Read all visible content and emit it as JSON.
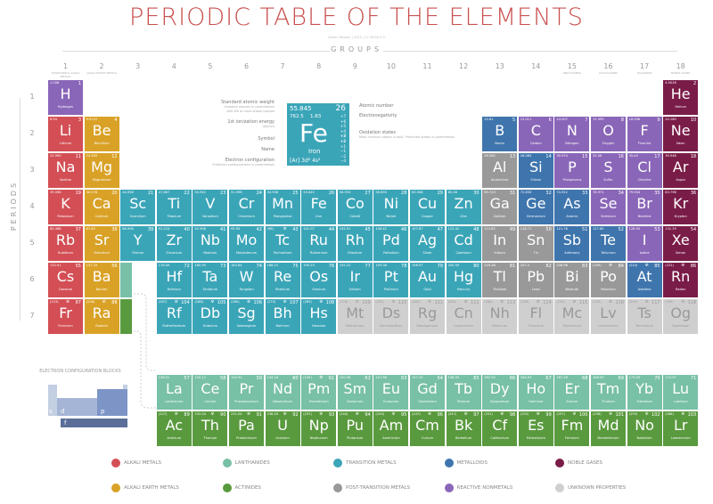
{
  "title": "PERIODIC TABLE OF THE ELEMENTS",
  "credit": "Adrian Roshan | 2021 | CC BY-SA 4.0",
  "groups_title": "GROUPS",
  "periods_title": "PERIODS",
  "group_numbers": [
    "1",
    "2",
    "3",
    "4",
    "5",
    "6",
    "7",
    "8",
    "9",
    "10",
    "11",
    "12",
    "13",
    "14",
    "15",
    "16",
    "17",
    "18"
  ],
  "group_names": {
    "1": "HYDROGEN & ALKALI METALS",
    "2": "ALKALI EARTH METALS",
    "15": "PNICTOGENS",
    "16": "CHALCOGENS",
    "17": "HALOGENS",
    "18": "NOBLE GASES"
  },
  "period_numbers": [
    "1",
    "2",
    "3",
    "4",
    "5",
    "6",
    "7"
  ],
  "colors": {
    "a": "#d34f55",
    "ae": "#d9a227",
    "tm": "#3ba5b8",
    "ln": "#78c0a6",
    "an": "#5a9a3f",
    "pt": "#999999",
    "md": "#3f75ad",
    "nm": "#8a66b8",
    "ng": "#7a1c48",
    "uk": "#cfcfcf"
  },
  "legend": [
    {
      "cat": "a",
      "label": "ALKALI METALS"
    },
    {
      "cat": "ln",
      "label": "LANTHANIDES"
    },
    {
      "cat": "tm",
      "label": "TRANSITION METALS"
    },
    {
      "cat": "md",
      "label": "METALLOIDS"
    },
    {
      "cat": "ng",
      "label": "NOBLE GASES"
    },
    {
      "cat": "ae",
      "label": "ALKALI EARTH METALS"
    },
    {
      "cat": "an",
      "label": "ACTINIDES"
    },
    {
      "cat": "pt",
      "label": "POST-TRANSITION METALS"
    },
    {
      "cat": "nm",
      "label": "REACTIVE NONMETALS"
    },
    {
      "cat": "uk",
      "label": "UNKNOWN PROPERTIES"
    }
  ],
  "key": {
    "mass": "55.845",
    "number": "26",
    "ionization": "762.5",
    "electronegativity": "1.83",
    "symbol": "Fe",
    "name": "Iron",
    "config": "[Ar] 3d⁶ 4s²",
    "oxidation": [
      "+7",
      "+6",
      "+5",
      "+4",
      "+3",
      "+2",
      "+1",
      "−1",
      "−2",
      "−4"
    ],
    "labels": {
      "weight": "Standard atomic weight",
      "weight_sub": "Unstable masses in parentheses",
      "halflife": "Half-life of most stable isotope",
      "ionization": "1st ionization energy",
      "ionization_sub": "(kJ/mol)",
      "symbol": "Symbol",
      "name": "Name",
      "config": "Electron configuration",
      "config_sub": "Predicted configurations in parentheses",
      "number": "Atomic number",
      "electronegativity": "Electronegativity",
      "oxidation": "Oxidation states",
      "oxidation_sub": "Most common states in bold. Predicted states in parentheses"
    }
  },
  "blocks": {
    "title": "ELECTRON CONFIGURATION BLOCKS",
    "s": "s",
    "d": "d",
    "p": "p",
    "f": "f"
  },
  "elements": [
    [
      1,
      "H",
      "Hydrogen",
      "1.008",
      "nm",
      1,
      1
    ],
    [
      2,
      "He",
      "Helium",
      "4.0026",
      "ng",
      1,
      18
    ],
    [
      3,
      "Li",
      "Lithium",
      "6.94",
      "a",
      2,
      1
    ],
    [
      4,
      "Be",
      "Beryllium",
      "9.0122",
      "ae",
      2,
      2
    ],
    [
      5,
      "B",
      "Boron",
      "10.81",
      "md",
      2,
      13
    ],
    [
      6,
      "C",
      "Carbon",
      "12.011",
      "nm",
      2,
      14
    ],
    [
      7,
      "N",
      "Nitrogen",
      "14.007",
      "nm",
      2,
      15
    ],
    [
      8,
      "O",
      "Oxygen",
      "15.999",
      "nm",
      2,
      16
    ],
    [
      9,
      "F",
      "Fluorine",
      "18.998",
      "nm",
      2,
      17
    ],
    [
      10,
      "Ne",
      "Neon",
      "20.180",
      "ng",
      2,
      18
    ],
    [
      11,
      "Na",
      "Sodium",
      "22.990",
      "a",
      3,
      1
    ],
    [
      12,
      "Mg",
      "Magnesium",
      "24.305",
      "ae",
      3,
      2
    ],
    [
      13,
      "Al",
      "Aluminium",
      "26.982",
      "pt",
      3,
      13
    ],
    [
      14,
      "Si",
      "Silicon",
      "28.085",
      "md",
      3,
      14
    ],
    [
      15,
      "P",
      "Phosphorus",
      "30.974",
      "nm",
      3,
      15
    ],
    [
      16,
      "S",
      "Sulfur",
      "32.06",
      "nm",
      3,
      16
    ],
    [
      17,
      "Cl",
      "Chlorine",
      "35.45",
      "nm",
      3,
      17
    ],
    [
      18,
      "Ar",
      "Argon",
      "39.948",
      "ng",
      3,
      18
    ],
    [
      19,
      "K",
      "Potassium",
      "39.098",
      "a",
      4,
      1
    ],
    [
      20,
      "Ca",
      "Calcium",
      "40.078",
      "ae",
      4,
      2
    ],
    [
      21,
      "Sc",
      "Scandium",
      "44.956",
      "tm",
      4,
      3
    ],
    [
      22,
      "Ti",
      "Titanium",
      "47.867",
      "tm",
      4,
      4
    ],
    [
      23,
      "V",
      "Vanadium",
      "50.942",
      "tm",
      4,
      5
    ],
    [
      24,
      "Cr",
      "Chromium",
      "51.996",
      "tm",
      4,
      6
    ],
    [
      25,
      "Mn",
      "Manganese",
      "54.938",
      "tm",
      4,
      7
    ],
    [
      26,
      "Fe",
      "Iron",
      "55.845",
      "tm",
      4,
      8
    ],
    [
      27,
      "Co",
      "Cobalt",
      "58.933",
      "tm",
      4,
      9
    ],
    [
      28,
      "Ni",
      "Nickel",
      "58.693",
      "tm",
      4,
      10
    ],
    [
      29,
      "Cu",
      "Copper",
      "63.546",
      "tm",
      4,
      11
    ],
    [
      30,
      "Zn",
      "Zinc",
      "65.38",
      "tm",
      4,
      12
    ],
    [
      31,
      "Ga",
      "Gallium",
      "69.723",
      "pt",
      4,
      13
    ],
    [
      32,
      "Ge",
      "Germanium",
      "72.630",
      "md",
      4,
      14
    ],
    [
      33,
      "As",
      "Arsenic",
      "74.922",
      "md",
      4,
      15
    ],
    [
      34,
      "Se",
      "Selenium",
      "78.971",
      "nm",
      4,
      16
    ],
    [
      35,
      "Br",
      "Bromine",
      "79.904",
      "nm",
      4,
      17
    ],
    [
      36,
      "Kr",
      "Krypton",
      "83.798",
      "ng",
      4,
      18
    ],
    [
      37,
      "Rb",
      "Rubidium",
      "85.468",
      "a",
      5,
      1
    ],
    [
      38,
      "Sr",
      "Strontium",
      "87.62",
      "ae",
      5,
      2
    ],
    [
      39,
      "Y",
      "Yttrium",
      "88.906",
      "tm",
      5,
      3
    ],
    [
      40,
      "Zr",
      "Zirconium",
      "91.224",
      "tm",
      5,
      4
    ],
    [
      41,
      "Nb",
      "Niobium",
      "92.906",
      "tm",
      5,
      5
    ],
    [
      42,
      "Mo",
      "Molybdenum",
      "95.95",
      "tm",
      5,
      6
    ],
    [
      43,
      "Tc",
      "Technetium",
      "(98)",
      "tm",
      5,
      7
    ],
    [
      44,
      "Ru",
      "Ruthenium",
      "101.07",
      "tm",
      5,
      8
    ],
    [
      45,
      "Rh",
      "Rhodium",
      "102.91",
      "tm",
      5,
      9
    ],
    [
      46,
      "Pd",
      "Palladium",
      "106.42",
      "tm",
      5,
      10
    ],
    [
      47,
      "Ag",
      "Silver",
      "107.87",
      "tm",
      5,
      11
    ],
    [
      48,
      "Cd",
      "Cadmium",
      "112.41",
      "tm",
      5,
      12
    ],
    [
      49,
      "In",
      "Indium",
      "114.82",
      "pt",
      5,
      13
    ],
    [
      50,
      "Sn",
      "Tin",
      "118.71",
      "pt",
      5,
      14
    ],
    [
      51,
      "Sb",
      "Antimony",
      "121.76",
      "md",
      5,
      15
    ],
    [
      52,
      "Te",
      "Tellurium",
      "127.60",
      "md",
      5,
      16
    ],
    [
      53,
      "I",
      "Iodine",
      "126.90",
      "nm",
      5,
      17
    ],
    [
      54,
      "Xe",
      "Xenon",
      "131.29",
      "ng",
      5,
      18
    ],
    [
      55,
      "Cs",
      "Caesium",
      "132.91",
      "a",
      6,
      1
    ],
    [
      56,
      "Ba",
      "Barium",
      "137.33",
      "ae",
      6,
      2
    ],
    [
      72,
      "Hf",
      "Hafnium",
      "178.49",
      "tm",
      6,
      4
    ],
    [
      73,
      "Ta",
      "Tantalum",
      "180.95",
      "tm",
      6,
      5
    ],
    [
      74,
      "W",
      "Tungsten",
      "183.84",
      "tm",
      6,
      6
    ],
    [
      75,
      "Re",
      "Rhenium",
      "186.21",
      "tm",
      6,
      7
    ],
    [
      76,
      "Os",
      "Osmium",
      "190.23",
      "tm",
      6,
      8
    ],
    [
      77,
      "Ir",
      "Iridium",
      "192.22",
      "tm",
      6,
      9
    ],
    [
      78,
      "Pt",
      "Platinum",
      "195.08",
      "tm",
      6,
      10
    ],
    [
      79,
      "Au",
      "Gold",
      "196.97",
      "tm",
      6,
      11
    ],
    [
      80,
      "Hg",
      "Mercury",
      "200.59",
      "tm",
      6,
      12
    ],
    [
      81,
      "Tl",
      "Thallium",
      "204.38",
      "pt",
      6,
      13
    ],
    [
      82,
      "Pb",
      "Lead",
      "207.2",
      "pt",
      6,
      14
    ],
    [
      83,
      "Bi",
      "Bismuth",
      "208.98",
      "pt",
      6,
      15
    ],
    [
      84,
      "Po",
      "Polonium",
      "(209)",
      "pt",
      6,
      16
    ],
    [
      85,
      "At",
      "Astatine",
      "(210)",
      "md",
      6,
      17
    ],
    [
      86,
      "Rn",
      "Radon",
      "(222)",
      "ng",
      6,
      18
    ],
    [
      87,
      "Fr",
      "Francium",
      "(223)",
      "a",
      7,
      1
    ],
    [
      88,
      "Ra",
      "Radium",
      "(226)",
      "ae",
      7,
      2
    ],
    [
      104,
      "Rf",
      "Rutherfordium",
      "(267)",
      "tm",
      7,
      4
    ],
    [
      105,
      "Db",
      "Dubnium",
      "(268)",
      "tm",
      7,
      5
    ],
    [
      106,
      "Sg",
      "Seaborgium",
      "(269)",
      "tm",
      7,
      6
    ],
    [
      107,
      "Bh",
      "Bohrium",
      "(270)",
      "tm",
      7,
      7
    ],
    [
      108,
      "Hs",
      "Hassium",
      "(269)",
      "tm",
      7,
      8
    ],
    [
      109,
      "Mt",
      "Meitnerium",
      "(278)",
      "uk",
      7,
      9
    ],
    [
      110,
      "Ds",
      "Darmstadtium",
      "(281)",
      "uk",
      7,
      10
    ],
    [
      111,
      "Rg",
      "Roentgenium",
      "(282)",
      "uk",
      7,
      11
    ],
    [
      112,
      "Cn",
      "Copernicium",
      "(285)",
      "uk",
      7,
      12
    ],
    [
      113,
      "Nh",
      "Nihonium",
      "(286)",
      "uk",
      7,
      13
    ],
    [
      114,
      "Fl",
      "Flerovium",
      "(289)",
      "uk",
      7,
      14
    ],
    [
      115,
      "Mc",
      "Moscovium",
      "(290)",
      "uk",
      7,
      15
    ],
    [
      116,
      "Lv",
      "Livermorium",
      "(293)",
      "uk",
      7,
      16
    ],
    [
      117,
      "Ts",
      "Tennessine",
      "(294)",
      "uk",
      7,
      17
    ],
    [
      118,
      "Og",
      "Oganesson",
      "(294)",
      "uk",
      7,
      18
    ],
    [
      57,
      "La",
      "Lanthanum",
      "138.91",
      "ln",
      6,
      null
    ],
    [
      58,
      "Ce",
      "Cerium",
      "140.12",
      "ln",
      6,
      null
    ],
    [
      59,
      "Pr",
      "Praseodymium",
      "140.91",
      "ln",
      6,
      null
    ],
    [
      60,
      "Nd",
      "Neodymium",
      "144.24",
      "ln",
      6,
      null
    ],
    [
      61,
      "Pm",
      "Promethium",
      "(145)",
      "ln",
      6,
      null
    ],
    [
      62,
      "Sm",
      "Samarium",
      "150.36",
      "ln",
      6,
      null
    ],
    [
      63,
      "Eu",
      "Europium",
      "151.96",
      "ln",
      6,
      null
    ],
    [
      64,
      "Gd",
      "Gadolinium",
      "157.25",
      "ln",
      6,
      null
    ],
    [
      65,
      "Tb",
      "Terbium",
      "158.93",
      "ln",
      6,
      null
    ],
    [
      66,
      "Dy",
      "Dysprosium",
      "162.50",
      "ln",
      6,
      null
    ],
    [
      67,
      "Ho",
      "Holmium",
      "164.93",
      "ln",
      6,
      null
    ],
    [
      68,
      "Er",
      "Erbium",
      "167.26",
      "ln",
      6,
      null
    ],
    [
      69,
      "Tm",
      "Thulium",
      "168.93",
      "ln",
      6,
      null
    ],
    [
      70,
      "Yb",
      "Ytterbium",
      "173.05",
      "ln",
      6,
      null
    ],
    [
      71,
      "Lu",
      "Lutetium",
      "174.97",
      "ln",
      6,
      null
    ],
    [
      89,
      "Ac",
      "Actinium",
      "(227)",
      "an",
      7,
      null
    ],
    [
      90,
      "Th",
      "Thorium",
      "232.04",
      "an",
      7,
      null
    ],
    [
      91,
      "Pa",
      "Protactinium",
      "231.04",
      "an",
      7,
      null
    ],
    [
      92,
      "U",
      "Uranium",
      "238.03",
      "an",
      7,
      null
    ],
    [
      93,
      "Np",
      "Neptunium",
      "(237)",
      "an",
      7,
      null
    ],
    [
      94,
      "Pu",
      "Plutonium",
      "(244)",
      "an",
      7,
      null
    ],
    [
      95,
      "Am",
      "Americium",
      "(243)",
      "an",
      7,
      null
    ],
    [
      96,
      "Cm",
      "Curium",
      "(247)",
      "an",
      7,
      null
    ],
    [
      97,
      "Bk",
      "Berkelium",
      "(247)",
      "an",
      7,
      null
    ],
    [
      98,
      "Cf",
      "Californium",
      "(251)",
      "an",
      7,
      null
    ],
    [
      99,
      "Es",
      "Einsteinium",
      "(252)",
      "an",
      7,
      null
    ],
    [
      100,
      "Fm",
      "Fermium",
      "(257)",
      "an",
      7,
      null
    ],
    [
      101,
      "Md",
      "Mendelevium",
      "(258)",
      "an",
      7,
      null
    ],
    [
      102,
      "No",
      "Nobelium",
      "(259)",
      "an",
      7,
      null
    ],
    [
      103,
      "Lr",
      "Lawrencium",
      "(266)",
      "an",
      7,
      null
    ]
  ]
}
